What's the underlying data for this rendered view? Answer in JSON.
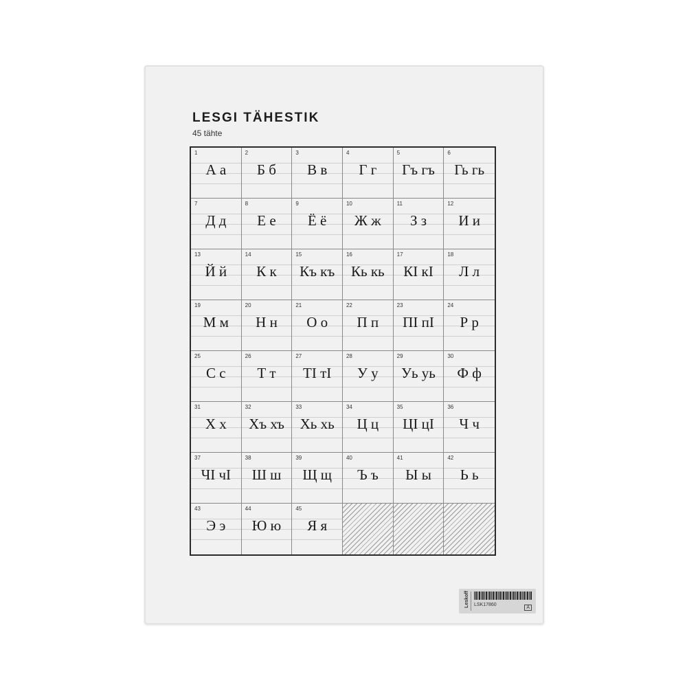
{
  "poster": {
    "title": "LESGI TÄHESTIK",
    "subtitle": "45 tähte",
    "letters": [
      {
        "n": "1",
        "l": "А а"
      },
      {
        "n": "2",
        "l": "Б б"
      },
      {
        "n": "3",
        "l": "В в"
      },
      {
        "n": "4",
        "l": "Г г"
      },
      {
        "n": "5",
        "l": "Гъ гъ"
      },
      {
        "n": "6",
        "l": "Гь гь"
      },
      {
        "n": "7",
        "l": "Д д"
      },
      {
        "n": "8",
        "l": "Е е"
      },
      {
        "n": "9",
        "l": "Ё ё"
      },
      {
        "n": "10",
        "l": "Ж ж"
      },
      {
        "n": "11",
        "l": "З з"
      },
      {
        "n": "12",
        "l": "И и"
      },
      {
        "n": "13",
        "l": "Й й"
      },
      {
        "n": "14",
        "l": "К к"
      },
      {
        "n": "15",
        "l": "Къ къ"
      },
      {
        "n": "16",
        "l": "Кь кь"
      },
      {
        "n": "17",
        "l": "КӀ кӀ"
      },
      {
        "n": "18",
        "l": "Л л"
      },
      {
        "n": "19",
        "l": "М м"
      },
      {
        "n": "20",
        "l": "Н н"
      },
      {
        "n": "21",
        "l": "О о"
      },
      {
        "n": "22",
        "l": "П п"
      },
      {
        "n": "23",
        "l": "ПӀ пӀ"
      },
      {
        "n": "24",
        "l": "Р р"
      },
      {
        "n": "25",
        "l": "С с"
      },
      {
        "n": "26",
        "l": "Т т"
      },
      {
        "n": "27",
        "l": "ТӀ тӀ"
      },
      {
        "n": "28",
        "l": "У у"
      },
      {
        "n": "29",
        "l": "Уь уь"
      },
      {
        "n": "30",
        "l": "Ф ф"
      },
      {
        "n": "31",
        "l": "Х х"
      },
      {
        "n": "32",
        "l": "Хъ хъ"
      },
      {
        "n": "33",
        "l": "Хь хь"
      },
      {
        "n": "34",
        "l": "Ц ц"
      },
      {
        "n": "35",
        "l": "ЦӀ цӀ"
      },
      {
        "n": "36",
        "l": "Ч ч"
      },
      {
        "n": "37",
        "l": "ЧӀ чӀ"
      },
      {
        "n": "38",
        "l": "Ш ш"
      },
      {
        "n": "39",
        "l": "Щ щ"
      },
      {
        "n": "40",
        "l": "Ъ ъ"
      },
      {
        "n": "41",
        "l": "Ы ы"
      },
      {
        "n": "42",
        "l": "Ь ь"
      },
      {
        "n": "43",
        "l": "Э э"
      },
      {
        "n": "44",
        "l": "Ю ю"
      },
      {
        "n": "45",
        "l": "Я я"
      }
    ],
    "empty_cells": 3
  },
  "label": {
    "brand": "Leskoff",
    "sku": "LSK17860",
    "grade": "A"
  }
}
